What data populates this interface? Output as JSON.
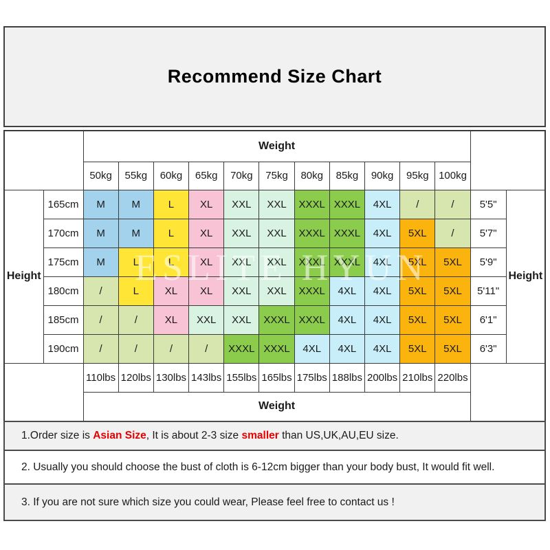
{
  "title": "Recommend Size Chart",
  "watermark": "ESLITE HYUN",
  "colors": {
    "blue": "#a2d2ec",
    "yellow": "#ffe636",
    "pink": "#f8c3d4",
    "mint": "#d9f3e3",
    "green": "#8ccc4d",
    "cyan": "#c8eff9",
    "lightgreen": "#d6e6ae",
    "orange": "#fbb40e",
    "accent_red": "#e60000"
  },
  "table": {
    "weight_header": "Weight",
    "weight_footer": "Weight",
    "height_header_left": "Height",
    "height_header_right": "Height",
    "kg_labels": [
      "50kg",
      "55kg",
      "60kg",
      "65kg",
      "70kg",
      "75kg",
      "80kg",
      "85kg",
      "90kg",
      "95kg",
      "100kg"
    ],
    "lbs_labels": [
      "110lbs",
      "120lbs",
      "130lbs",
      "143lbs",
      "155lbs",
      "165lbs",
      "175lbs",
      "188lbs",
      "200lbs",
      "210lbs",
      "220lbs"
    ],
    "rows": [
      {
        "cm": "165cm",
        "ft": "5'5\"",
        "cells": [
          {
            "v": "M",
            "c": "blue"
          },
          {
            "v": "M",
            "c": "blue"
          },
          {
            "v": "L",
            "c": "yellow"
          },
          {
            "v": "XL",
            "c": "pink"
          },
          {
            "v": "XXL",
            "c": "mint"
          },
          {
            "v": "XXL",
            "c": "mint"
          },
          {
            "v": "XXXL",
            "c": "green"
          },
          {
            "v": "XXXL",
            "c": "green"
          },
          {
            "v": "4XL",
            "c": "cyan"
          },
          {
            "v": "/",
            "c": "lightgreen"
          },
          {
            "v": "/",
            "c": "lightgreen"
          }
        ]
      },
      {
        "cm": "170cm",
        "ft": "5'7\"",
        "cells": [
          {
            "v": "M",
            "c": "blue"
          },
          {
            "v": "M",
            "c": "blue"
          },
          {
            "v": "L",
            "c": "yellow"
          },
          {
            "v": "XL",
            "c": "pink"
          },
          {
            "v": "XXL",
            "c": "mint"
          },
          {
            "v": "XXL",
            "c": "mint"
          },
          {
            "v": "XXXL",
            "c": "green"
          },
          {
            "v": "XXXL",
            "c": "green"
          },
          {
            "v": "4XL",
            "c": "cyan"
          },
          {
            "v": "5XL",
            "c": "orange"
          },
          {
            "v": "/",
            "c": "lightgreen"
          }
        ]
      },
      {
        "cm": "175cm",
        "ft": "5'9\"",
        "cells": [
          {
            "v": "M",
            "c": "blue"
          },
          {
            "v": "L",
            "c": "yellow"
          },
          {
            "v": "L",
            "c": "yellow"
          },
          {
            "v": "XL",
            "c": "pink"
          },
          {
            "v": "XXL",
            "c": "mint"
          },
          {
            "v": "XXL",
            "c": "mint"
          },
          {
            "v": "XXXL",
            "c": "green"
          },
          {
            "v": "XXXL",
            "c": "green"
          },
          {
            "v": "4XL",
            "c": "cyan"
          },
          {
            "v": "5XL",
            "c": "orange"
          },
          {
            "v": "5XL",
            "c": "orange"
          }
        ]
      },
      {
        "cm": "180cm",
        "ft": "5'11\"",
        "cells": [
          {
            "v": "/",
            "c": "lightgreen"
          },
          {
            "v": "L",
            "c": "yellow"
          },
          {
            "v": "XL",
            "c": "pink"
          },
          {
            "v": "XL",
            "c": "pink"
          },
          {
            "v": "XXL",
            "c": "mint"
          },
          {
            "v": "XXL",
            "c": "mint"
          },
          {
            "v": "XXXL",
            "c": "green"
          },
          {
            "v": "4XL",
            "c": "cyan"
          },
          {
            "v": "4XL",
            "c": "cyan"
          },
          {
            "v": "5XL",
            "c": "orange"
          },
          {
            "v": "5XL",
            "c": "orange"
          }
        ]
      },
      {
        "cm": "185cm",
        "ft": "6'1\"",
        "cells": [
          {
            "v": "/",
            "c": "lightgreen"
          },
          {
            "v": "/",
            "c": "lightgreen"
          },
          {
            "v": "XL",
            "c": "pink"
          },
          {
            "v": "XXL",
            "c": "mint"
          },
          {
            "v": "XXL",
            "c": "mint"
          },
          {
            "v": "XXXL",
            "c": "green"
          },
          {
            "v": "XXXL",
            "c": "green"
          },
          {
            "v": "4XL",
            "c": "cyan"
          },
          {
            "v": "4XL",
            "c": "cyan"
          },
          {
            "v": "5XL",
            "c": "orange"
          },
          {
            "v": "5XL",
            "c": "orange"
          }
        ]
      },
      {
        "cm": "190cm",
        "ft": "6'3\"",
        "cells": [
          {
            "v": "/",
            "c": "lightgreen"
          },
          {
            "v": "/",
            "c": "lightgreen"
          },
          {
            "v": "/",
            "c": "lightgreen"
          },
          {
            "v": "/",
            "c": "lightgreen"
          },
          {
            "v": "XXXL",
            "c": "green"
          },
          {
            "v": "XXXL",
            "c": "green"
          },
          {
            "v": "4XL",
            "c": "cyan"
          },
          {
            "v": "4XL",
            "c": "cyan"
          },
          {
            "v": "4XL",
            "c": "cyan"
          },
          {
            "v": "5XL",
            "c": "orange"
          },
          {
            "v": "5XL",
            "c": "orange"
          }
        ]
      }
    ]
  },
  "notes": [
    {
      "shaded": true,
      "parts": [
        {
          "text": "1.Order size is "
        },
        {
          "text": "Asian Size",
          "red": true
        },
        {
          "text": ", It is about 2-3 size "
        },
        {
          "text": "smaller",
          "red": true
        },
        {
          "text": " than US,UK,AU,EU size."
        }
      ]
    },
    {
      "shaded": false,
      "parts": [
        {
          "text": "2. Usually you should choose the bust of cloth is 6-12cm bigger than your body bust, It would fit well."
        }
      ]
    },
    {
      "shaded": true,
      "parts": [
        {
          "text": "3. If you are not sure which size you could wear, Please feel free to contact us !"
        }
      ]
    }
  ]
}
